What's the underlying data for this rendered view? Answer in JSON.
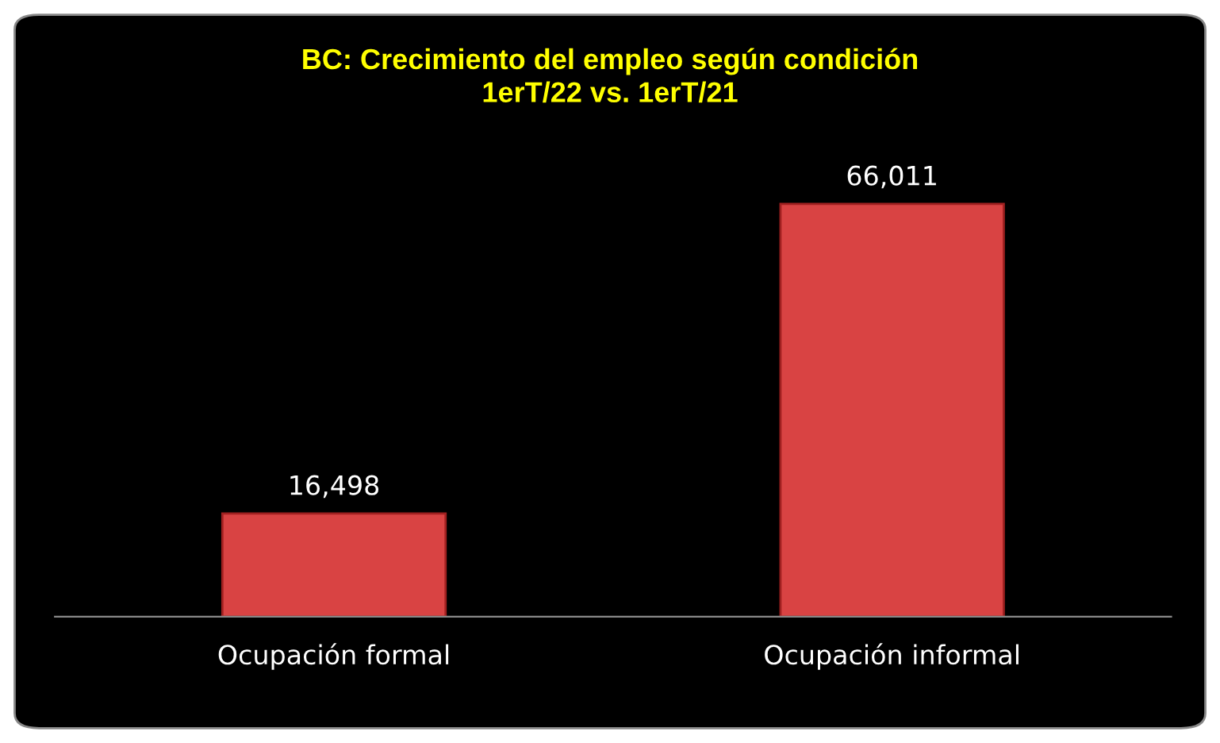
{
  "chart_data": {
    "type": "bar",
    "title": "BC: Crecimiento del empleo según condición\n1erT/22 vs. 1erT/21",
    "categories": [
      "Ocupación formal",
      "Ocupación informal"
    ],
    "values": [
      16498,
      66011
    ],
    "color": "#d94343",
    "value_labels": [
      "16,498",
      "66,011"
    ],
    "grid": false,
    "legend": false
  }
}
